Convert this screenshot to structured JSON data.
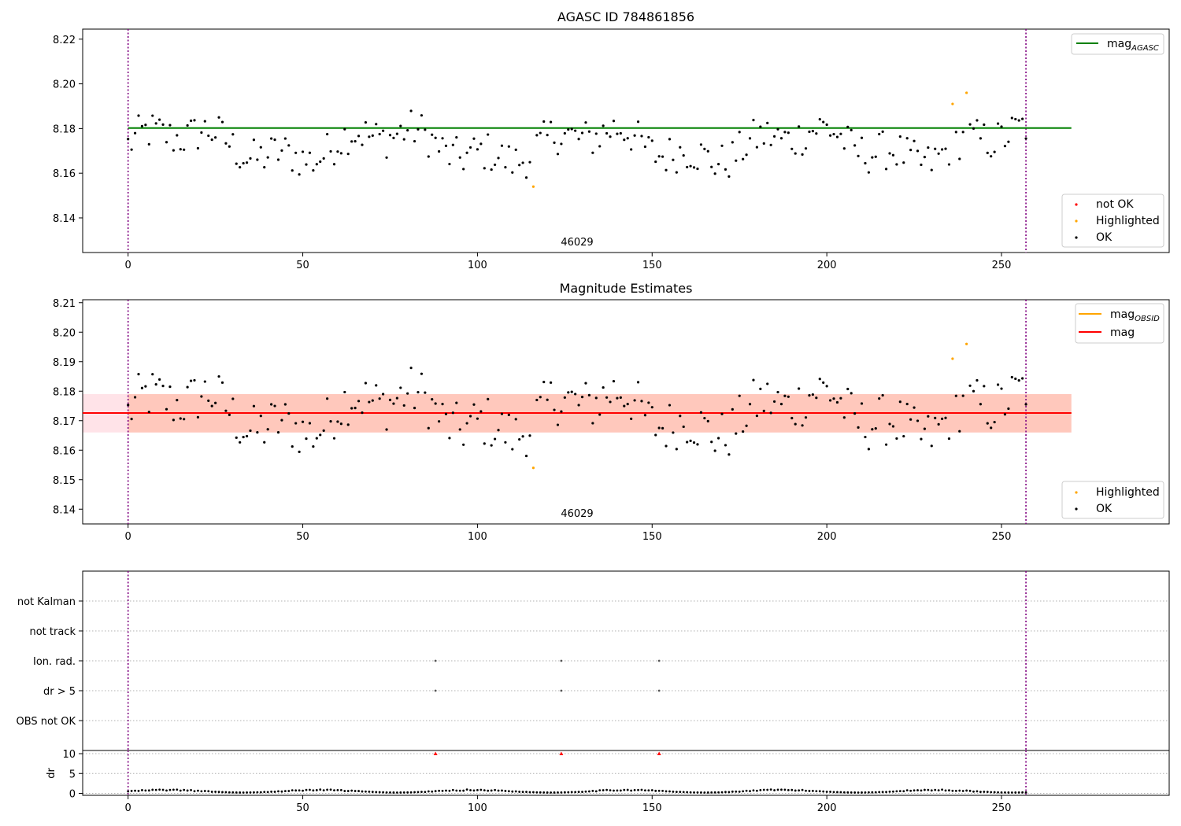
{
  "chart_data": [
    {
      "type": "scatter",
      "title": "AGASC ID 784861856",
      "xlim": [
        -13,
        298
      ],
      "ylim": [
        8.1245,
        8.2245
      ],
      "x_ticks": [
        0,
        50,
        100,
        150,
        200,
        250
      ],
      "y_ticks": [
        8.14,
        8.16,
        8.18,
        8.2,
        8.22
      ],
      "grid": false,
      "obsid_label": "46029",
      "vlines_x": [
        0,
        257
      ],
      "lines": [
        {
          "name": "mag",
          "sub": "AGASC",
          "y": 8.1802,
          "x_range": [
            0,
            270
          ],
          "color": "#008000"
        }
      ],
      "legend_lines_placement": "top-right",
      "legend_points_placement": "bottom-right",
      "legend_points": [
        {
          "name": "not OK",
          "color": "#ff0000"
        },
        {
          "name": "Highlighted",
          "color": "#ffa500"
        },
        {
          "name": "OK",
          "color": "#000000"
        }
      ],
      "highlighted": [
        [
          116,
          8.154
        ],
        [
          236,
          8.191
        ],
        [
          240,
          8.196
        ]
      ],
      "not_ok": []
    },
    {
      "type": "scatter",
      "title": "Magnitude Estimates",
      "xlim": [
        -13,
        298
      ],
      "ylim": [
        8.135,
        8.211
      ],
      "x_ticks": [
        0,
        50,
        100,
        150,
        200,
        250
      ],
      "y_ticks": [
        8.14,
        8.15,
        8.16,
        8.17,
        8.18,
        8.19,
        8.2,
        8.21
      ],
      "grid": false,
      "obsid_label": "46029",
      "vlines_x": [
        0,
        257
      ],
      "lines": [
        {
          "name": "mag",
          "sub": "OBSID",
          "y": 8.1726,
          "x_range": [
            0,
            270
          ],
          "color": "#ffa500"
        },
        {
          "name": "mag",
          "sub": "",
          "y": 8.1726,
          "x_range": [
            -13,
            270
          ],
          "color": "#ff0000"
        }
      ],
      "bands": [
        {
          "y_low": 8.166,
          "y_high": 8.179,
          "x_range": [
            -13,
            270
          ],
          "color": "#ffc0cb",
          "opacity": 0.45
        },
        {
          "y_low": 8.166,
          "y_high": 8.179,
          "x_range": [
            0,
            270
          ],
          "color": "#ffa07a",
          "opacity": 0.4
        }
      ],
      "legend_lines_placement": "top-right",
      "legend_points_placement": "bottom-right",
      "legend_points": [
        {
          "name": "Highlighted",
          "color": "#ffa500"
        },
        {
          "name": "OK",
          "color": "#000000"
        }
      ],
      "highlighted": [
        [
          116,
          8.154
        ],
        [
          236,
          8.191
        ],
        [
          240,
          8.196
        ]
      ]
    },
    {
      "type": "scatter",
      "xlim": [
        -13,
        298
      ],
      "flag_categories": [
        "not Kalman",
        "not track",
        "Ion. rad.",
        "dr > 5",
        "OBS not OK"
      ],
      "flag_points": [
        {
          "flag": "Ion. rad.",
          "x": [
            88,
            124,
            152
          ]
        },
        {
          "flag": "dr > 5",
          "x": [
            88,
            124,
            152
          ]
        }
      ],
      "vlines_x": [
        0,
        257
      ],
      "grid": "y-dotted"
    },
    {
      "type": "scatter",
      "ylabel": "dr",
      "xlim": [
        -13,
        298
      ],
      "ylim": [
        -0.5,
        10.8
      ],
      "x_ticks": [
        0,
        50,
        100,
        150,
        200,
        250
      ],
      "y_ticks": [
        0,
        5,
        10
      ],
      "vlines_x": [
        0,
        257
      ],
      "outliers_clipped": [
        [
          88,
          10
        ],
        [
          124,
          10
        ],
        [
          152,
          10
        ]
      ],
      "outlier_color": "#ff0000",
      "dr_typical": [
        0.2,
        1.0
      ]
    }
  ]
}
